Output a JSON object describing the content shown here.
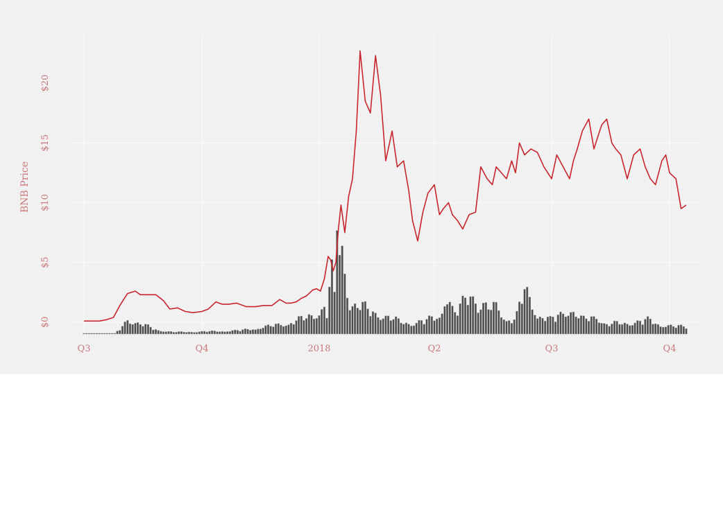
{
  "chart_data": {
    "type": "line",
    "ylabel": "BNB Price",
    "xlabel": "",
    "title": "",
    "x_ticks": [
      "Q3",
      "Q4",
      "2018",
      "Q2",
      "Q3",
      "Q4"
    ],
    "y_ticks": [
      "$0",
      "$5",
      "$10",
      "$15",
      "$20"
    ],
    "y_tick_values": [
      0,
      5,
      10,
      15,
      20
    ],
    "ylim": [
      -1,
      23
    ],
    "xlim": [
      "2017-07-01",
      "2018-10-14"
    ],
    "grid": true,
    "colors": {
      "price": "#c8242c",
      "volume": "#4a4a4a",
      "background": "#f1f1f1",
      "tick_label": "#c9777b"
    },
    "price_keyframes": {
      "x": [
        "2017-07-01",
        "2017-07-08",
        "2017-07-13",
        "2017-07-18",
        "2017-07-24",
        "2017-07-29",
        "2017-08-04",
        "2017-08-10",
        "2017-08-14",
        "2017-08-20",
        "2017-08-26",
        "2017-09-01",
        "2017-09-06",
        "2017-09-12",
        "2017-09-18",
        "2017-09-24",
        "2017-10-01",
        "2017-10-06",
        "2017-10-12",
        "2017-10-17",
        "2017-10-22",
        "2017-10-28",
        "2017-11-05",
        "2017-11-12",
        "2017-11-18",
        "2017-11-25",
        "2017-12-01",
        "2017-12-06",
        "2017-12-10",
        "2017-12-14",
        "2017-12-18",
        "2017-12-22",
        "2017-12-27",
        "2017-12-30",
        "2018-01-02",
        "2018-01-05",
        "2018-01-08",
        "2018-01-10",
        "2018-01-12",
        "2018-01-14",
        "2018-01-16",
        "2018-01-18",
        "2018-01-21",
        "2018-01-24",
        "2018-01-27",
        "2018-01-30",
        "2018-02-02",
        "2018-02-06",
        "2018-02-10",
        "2018-02-14",
        "2018-02-18",
        "2018-02-22",
        "2018-02-27",
        "2018-03-03",
        "2018-03-08",
        "2018-03-12",
        "2018-03-15",
        "2018-03-19",
        "2018-03-23",
        "2018-03-27",
        "2018-04-01",
        "2018-04-05",
        "2018-04-08",
        "2018-04-12",
        "2018-04-15",
        "2018-04-19",
        "2018-04-23",
        "2018-04-28",
        "2018-05-03",
        "2018-05-07",
        "2018-05-12",
        "2018-05-16",
        "2018-05-19",
        "2018-05-23",
        "2018-05-27",
        "2018-05-31",
        "2018-06-03",
        "2018-06-06",
        "2018-06-10",
        "2018-06-15",
        "2018-06-20",
        "2018-06-25",
        "2018-07-01",
        "2018-07-05",
        "2018-07-10",
        "2018-07-15",
        "2018-07-18",
        "2018-07-21",
        "2018-07-25",
        "2018-07-30",
        "2018-08-03",
        "2018-08-06",
        "2018-08-09",
        "2018-08-13",
        "2018-08-17",
        "2018-08-20",
        "2018-08-24",
        "2018-08-29",
        "2018-09-03",
        "2018-09-08",
        "2018-09-12",
        "2018-09-16",
        "2018-09-20",
        "2018-09-25",
        "2018-09-28",
        "2018-10-01",
        "2018-10-06",
        "2018-10-10",
        "2018-10-14"
      ],
      "y": [
        0.1,
        0.1,
        0.1,
        0.2,
        0.4,
        1.4,
        2.4,
        2.6,
        2.3,
        2.3,
        2.3,
        1.8,
        1.1,
        1.2,
        0.9,
        0.8,
        0.9,
        1.1,
        1.7,
        1.5,
        1.5,
        1.6,
        1.3,
        1.3,
        1.4,
        1.4,
        1.9,
        1.6,
        1.6,
        1.7,
        2.0,
        2.2,
        2.7,
        2.8,
        2.6,
        3.6,
        5.5,
        5.2,
        4.3,
        5.0,
        7.8,
        9.8,
        7.5,
        10.5,
        12.0,
        16.0,
        22.7,
        18.5,
        17.5,
        22.3,
        19.0,
        13.5,
        16.0,
        13.0,
        13.5,
        11.0,
        8.5,
        6.8,
        9.2,
        10.8,
        11.5,
        9.0,
        9.5,
        10.0,
        9.0,
        8.5,
        7.8,
        9.0,
        9.2,
        13.0,
        12.0,
        11.5,
        13.0,
        12.5,
        12.0,
        13.5,
        12.5,
        15.0,
        14.0,
        14.5,
        14.2,
        13.0,
        12.0,
        14.0,
        13.0,
        12.0,
        13.5,
        14.5,
        16.0,
        17.0,
        14.5,
        15.5,
        16.5,
        17.0,
        15.0,
        14.5,
        14.0,
        12.0,
        14.0,
        14.5,
        13.0,
        12.0,
        11.5,
        13.5,
        14.0,
        12.5,
        12.0,
        9.5,
        9.8
      ]
    },
    "volume_peaks": {
      "x": [
        "2017-07-01",
        "2017-07-25",
        "2017-07-29",
        "2017-08-04",
        "2017-08-10",
        "2017-08-20",
        "2017-08-28",
        "2017-09-10",
        "2017-10-15",
        "2017-11-01",
        "2017-12-01",
        "2017-12-15",
        "2017-12-28",
        "2018-01-05",
        "2018-01-08",
        "2018-01-10",
        "2018-01-13",
        "2018-01-15",
        "2018-01-17",
        "2018-01-19",
        "2018-01-25",
        "2018-02-10",
        "2018-02-25",
        "2018-03-05",
        "2018-03-15",
        "2018-03-27",
        "2018-04-05",
        "2018-04-10",
        "2018-04-16",
        "2018-04-20",
        "2018-05-01",
        "2018-05-05",
        "2018-05-12",
        "2018-05-20",
        "2018-05-26",
        "2018-06-03",
        "2018-06-10",
        "2018-06-20",
        "2018-06-30",
        "2018-07-06",
        "2018-07-15",
        "2018-07-25",
        "2018-08-05",
        "2018-08-12",
        "2018-08-25",
        "2018-09-05",
        "2018-09-15",
        "2018-09-25",
        "2018-10-05",
        "2018-10-14"
      ],
      "y": [
        0.05,
        0.05,
        0.5,
        1.6,
        1.3,
        0.8,
        0.4,
        0.2,
        0.3,
        0.4,
        1.0,
        1.5,
        2.0,
        3.2,
        1.8,
        7.4,
        4.0,
        14.8,
        8.5,
        8.8,
        3.5,
        2.5,
        1.8,
        1.3,
        1.2,
        1.5,
        2.0,
        4.4,
        2.2,
        2.6,
        5.3,
        3.0,
        2.8,
        3.0,
        1.8,
        1.5,
        4.9,
        2.2,
        1.5,
        2.0,
        2.8,
        1.5,
        2.0,
        1.0,
        1.2,
        1.3,
        1.5,
        1.0,
        0.8,
        0.8
      ]
    }
  }
}
